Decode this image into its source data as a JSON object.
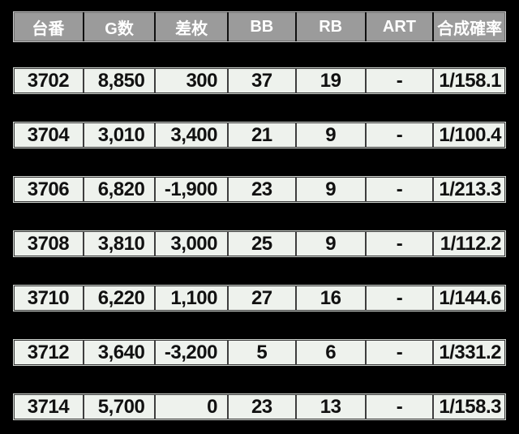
{
  "chart_data": {
    "type": "table",
    "title": "",
    "columns": [
      "台番",
      "G数",
      "差枚",
      "BB",
      "RB",
      "ART",
      "合成確率"
    ],
    "rows": [
      [
        "3702",
        "8,850",
        "300",
        "37",
        "19",
        "-",
        "1/158.1"
      ],
      [
        "3704",
        "3,010",
        "3,400",
        "21",
        "9",
        "-",
        "1/100.4"
      ],
      [
        "3706",
        "6,820",
        "-1,900",
        "23",
        "9",
        "-",
        "1/213.3"
      ],
      [
        "3708",
        "3,810",
        "3,000",
        "25",
        "9",
        "-",
        "1/112.2"
      ],
      [
        "3710",
        "6,220",
        "1,100",
        "27",
        "16",
        "-",
        "1/144.6"
      ],
      [
        "3712",
        "3,640",
        "-3,200",
        "5",
        "6",
        "-",
        "1/331.2"
      ],
      [
        "3714",
        "5,700",
        "0",
        "23",
        "13",
        "-",
        "1/158.3"
      ]
    ]
  },
  "colors": {
    "page_background": "#000000",
    "header_background": "#9b9b9b",
    "header_text": "#ffffff",
    "cell_background": "#eef2ed",
    "cell_text": "#111111"
  }
}
